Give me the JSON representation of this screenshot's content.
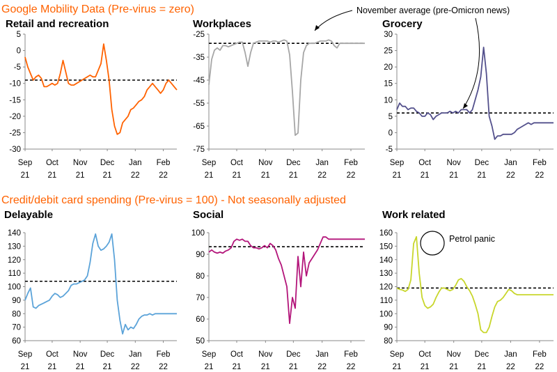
{
  "colors": {
    "section_title": "#ff6200",
    "axis": "#888888",
    "average_line": "#000000",
    "retail": "#ff6200",
    "workplaces": "#a6a6a6",
    "grocery": "#53508c",
    "delayable": "#5ba3d9",
    "social": "#b3157a",
    "work_related": "#c8d62b"
  },
  "top_section_title": "Google Mobility Data (Pre-virus = zero)",
  "bottom_section_title": "Credit/debit card spending (Pre-virus = 100) - Not seasonally adjusted",
  "chart_data": [
    {
      "type": "line",
      "title": "Retail and recreation",
      "color_key": "retail",
      "x_ticks": [
        [
          "Sep",
          "21"
        ],
        [
          "Oct",
          "21"
        ],
        [
          "Nov",
          "21"
        ],
        [
          "Dec",
          "21"
        ],
        [
          "Jan",
          "22"
        ],
        [
          "Feb",
          "22"
        ]
      ],
      "yticks": [
        5,
        0,
        -5,
        -10,
        -15,
        -20,
        -25,
        -30
      ],
      "ylim": [
        -30,
        5
      ],
      "average_line": -9,
      "x": [
        0,
        3,
        6,
        9,
        12,
        15,
        18,
        21,
        24,
        27,
        30,
        33,
        36,
        39,
        42,
        45,
        48,
        51,
        54,
        57,
        60,
        63,
        66,
        69,
        72,
        75,
        78,
        81,
        84,
        87,
        90,
        93,
        96,
        99,
        102,
        105,
        108,
        111,
        114,
        117,
        120,
        123,
        126,
        129,
        132,
        135,
        138,
        141,
        144,
        147,
        150,
        153,
        156,
        159,
        162,
        165,
        168
      ],
      "values": [
        -2,
        -5,
        -7,
        -9,
        -8,
        -7.5,
        -8.5,
        -11,
        -11,
        -10.5,
        -10,
        -10.5,
        -10,
        -7,
        -3,
        -6.5,
        -10,
        -10.5,
        -10.5,
        -10,
        -9.5,
        -9,
        -8.5,
        -8,
        -7.5,
        -8,
        -8,
        -6,
        -4,
        2,
        -3,
        -9,
        -18,
        -23,
        -25.5,
        -25,
        -22,
        -21,
        -20,
        -18,
        -17.5,
        -16.5,
        -15.5,
        -15,
        -14,
        -12,
        -11,
        -10,
        -11,
        -12,
        -13,
        -12,
        -10,
        -9,
        -10,
        -11,
        -12
      ]
    },
    {
      "type": "line",
      "title": "Workplaces",
      "color_key": "workplaces",
      "x_ticks": [
        [
          "Sep",
          "21"
        ],
        [
          "Oct",
          "21"
        ],
        [
          "Nov",
          "21"
        ],
        [
          "Dec",
          "21"
        ],
        [
          "Jan",
          "22"
        ],
        [
          "Feb",
          "22"
        ]
      ],
      "yticks": [
        -25,
        -35,
        -45,
        -55,
        -65,
        -75
      ],
      "ylim": [
        -75,
        -25
      ],
      "average_line": -29,
      "x": [
        0,
        3,
        6,
        9,
        12,
        15,
        18,
        21,
        24,
        27,
        30,
        33,
        36,
        39,
        42,
        45,
        48,
        51,
        54,
        57,
        60,
        63,
        66,
        69,
        72,
        75,
        78,
        81,
        84,
        87,
        90,
        93,
        96,
        99,
        102,
        105,
        108,
        111,
        114,
        117,
        120,
        123,
        126,
        129,
        132,
        135,
        138,
        141,
        144,
        147,
        150,
        153,
        156,
        159,
        162,
        165,
        168
      ],
      "values": [
        -47,
        -36,
        -32,
        -31,
        -32,
        -30,
        -30,
        -30.5,
        -30,
        -29.5,
        -29,
        -28.5,
        -28.5,
        -33,
        -39,
        -33,
        -29,
        -28.5,
        -28,
        -28,
        -28,
        -28,
        -28.5,
        -28,
        -28,
        -28.5,
        -28,
        -27.5,
        -28,
        -34,
        -50,
        -69,
        -68,
        -45,
        -33,
        -30,
        -29,
        -29,
        -29,
        -28.5,
        -28,
        -28,
        -28,
        -27.5,
        -28,
        -30,
        -31,
        -29,
        -29,
        -29,
        -29,
        -29,
        -29,
        -29,
        -29,
        -29,
        -29
      ]
    },
    {
      "type": "line",
      "title": "Grocery",
      "color_key": "grocery",
      "x_ticks": [
        [
          "Sep",
          "21"
        ],
        [
          "Oct",
          "21"
        ],
        [
          "Nov",
          "21"
        ],
        [
          "Dec",
          "21"
        ],
        [
          "Jan",
          "22"
        ],
        [
          "Feb",
          "22"
        ]
      ],
      "yticks": [
        30,
        25,
        20,
        15,
        10,
        5,
        0,
        -5
      ],
      "ylim": [
        -5,
        30
      ],
      "average_line": 6,
      "x": [
        0,
        3,
        6,
        9,
        12,
        15,
        18,
        21,
        24,
        27,
        30,
        33,
        36,
        39,
        42,
        45,
        48,
        51,
        54,
        57,
        60,
        63,
        66,
        69,
        72,
        75,
        78,
        81,
        84,
        87,
        90,
        93,
        96,
        99,
        102,
        105,
        108,
        111,
        114,
        117,
        120,
        123,
        126,
        129,
        132,
        135,
        138,
        141,
        144,
        147,
        150,
        153,
        156,
        159,
        162,
        165,
        168
      ],
      "values": [
        7,
        9,
        8,
        8,
        7,
        7.5,
        7.5,
        6.5,
        6,
        5,
        5,
        6,
        5.5,
        4,
        5,
        5.5,
        6,
        6,
        6,
        6.5,
        6,
        6.5,
        6,
        7,
        7,
        7,
        6,
        7,
        10,
        13,
        17,
        26,
        18,
        5,
        2,
        -2,
        -1,
        -1,
        -0.5,
        -0.5,
        -0.5,
        -0.5,
        0,
        1,
        1.5,
        2,
        2.5,
        3,
        2.5,
        3,
        3,
        3,
        3,
        3,
        3,
        3,
        3
      ]
    },
    {
      "type": "line",
      "title": "Delayable",
      "color_key": "delayable",
      "x_ticks": [
        [
          "Sep",
          "21"
        ],
        [
          "Oct",
          "21"
        ],
        [
          "Nov",
          "21"
        ],
        [
          "Dec",
          "21"
        ],
        [
          "Jan",
          "22"
        ],
        [
          "Feb",
          "22"
        ]
      ],
      "yticks": [
        140,
        130,
        120,
        110,
        100,
        90,
        80,
        70,
        60
      ],
      "ylim": [
        60,
        140
      ],
      "average_line": 104,
      "x": [
        0,
        3,
        6,
        9,
        12,
        15,
        18,
        21,
        24,
        27,
        30,
        33,
        36,
        39,
        42,
        45,
        48,
        51,
        54,
        57,
        60,
        63,
        66,
        69,
        72,
        75,
        78,
        81,
        84,
        87,
        90,
        93,
        96,
        99,
        102,
        105,
        108,
        111,
        114,
        117,
        120,
        123,
        126,
        129,
        132,
        135,
        138,
        141,
        144,
        147,
        150,
        153,
        156,
        159,
        162,
        165,
        168
      ],
      "values": [
        90,
        95,
        99,
        85,
        84,
        86,
        87,
        88,
        89,
        90,
        93,
        95,
        94,
        92,
        93,
        95,
        97,
        101,
        102,
        102,
        103,
        104,
        105,
        108,
        118,
        132,
        139,
        130,
        127,
        128,
        130,
        133,
        139,
        120,
        90,
        75,
        65,
        72,
        68,
        70,
        69,
        72,
        76,
        78,
        79,
        79,
        80,
        79,
        80,
        80,
        80,
        80,
        80,
        80,
        80,
        80,
        80
      ]
    },
    {
      "type": "line",
      "title": "Social",
      "color_key": "social",
      "x_ticks": [
        [
          "Sep",
          "21"
        ],
        [
          "Oct",
          "21"
        ],
        [
          "Nov",
          "21"
        ],
        [
          "Dec",
          "21"
        ],
        [
          "Jan",
          "22"
        ],
        [
          "Feb",
          "22"
        ]
      ],
      "yticks": [
        100,
        90,
        80,
        70,
        60,
        50
      ],
      "ylim": [
        50,
        100
      ],
      "average_line": 93.5,
      "x": [
        0,
        3,
        6,
        9,
        12,
        15,
        18,
        21,
        24,
        27,
        30,
        33,
        36,
        39,
        42,
        45,
        48,
        51,
        54,
        57,
        60,
        63,
        66,
        69,
        72,
        75,
        78,
        81,
        84,
        87,
        90,
        93,
        96,
        99,
        102,
        105,
        108,
        111,
        114,
        117,
        120,
        123,
        126,
        129,
        132,
        135,
        138,
        141,
        144,
        147,
        150,
        153,
        156,
        159,
        162,
        165,
        168
      ],
      "values": [
        91,
        92,
        91,
        90.5,
        91,
        90.5,
        91.5,
        92,
        93,
        96,
        97,
        96.5,
        97,
        96,
        96,
        94,
        93,
        93,
        92.5,
        93,
        94,
        93,
        95,
        94,
        92,
        88,
        85,
        80,
        75,
        58,
        70,
        65,
        89,
        75,
        91,
        80,
        86,
        88,
        90,
        92,
        95,
        98,
        98,
        97,
        97,
        97,
        97,
        97,
        97,
        97,
        97,
        97,
        97,
        97,
        97,
        97,
        97
      ]
    },
    {
      "type": "line",
      "title": "Work related",
      "color_key": "work_related",
      "x_ticks": [
        [
          "Sep",
          "21"
        ],
        [
          "Oct",
          "21"
        ],
        [
          "Nov",
          "21"
        ],
        [
          "Dec",
          "21"
        ],
        [
          "Jan",
          "22"
        ],
        [
          "Feb",
          "22"
        ]
      ],
      "yticks": [
        160,
        150,
        140,
        130,
        120,
        110,
        100,
        90,
        80
      ],
      "ylim": [
        80,
        160
      ],
      "average_line": 119,
      "x": [
        0,
        3,
        6,
        9,
        12,
        15,
        18,
        21,
        24,
        27,
        30,
        33,
        36,
        39,
        42,
        45,
        48,
        51,
        54,
        57,
        60,
        63,
        66,
        69,
        72,
        75,
        78,
        81,
        84,
        87,
        90,
        93,
        96,
        99,
        102,
        105,
        108,
        111,
        114,
        117,
        120,
        123,
        126,
        129,
        132,
        135,
        138,
        141,
        144,
        147,
        150,
        153,
        156,
        159,
        162,
        165,
        168
      ],
      "values": [
        119,
        118,
        117.5,
        116.5,
        118,
        125,
        152,
        157,
        130,
        112,
        106,
        104,
        105,
        107,
        112,
        116,
        119,
        119,
        118,
        117,
        118,
        121,
        125,
        126,
        124,
        120,
        117,
        113,
        107,
        100,
        88,
        86,
        86,
        90,
        98,
        105,
        109,
        110,
        112,
        115,
        118,
        117,
        115,
        114,
        114,
        114,
        114,
        114,
        114,
        114,
        114,
        114,
        114,
        114,
        114,
        114,
        114
      ]
    }
  ],
  "annotations": {
    "november_average": "November average (pre-Omicron news)",
    "petrol_panic": "Petrol panic"
  }
}
